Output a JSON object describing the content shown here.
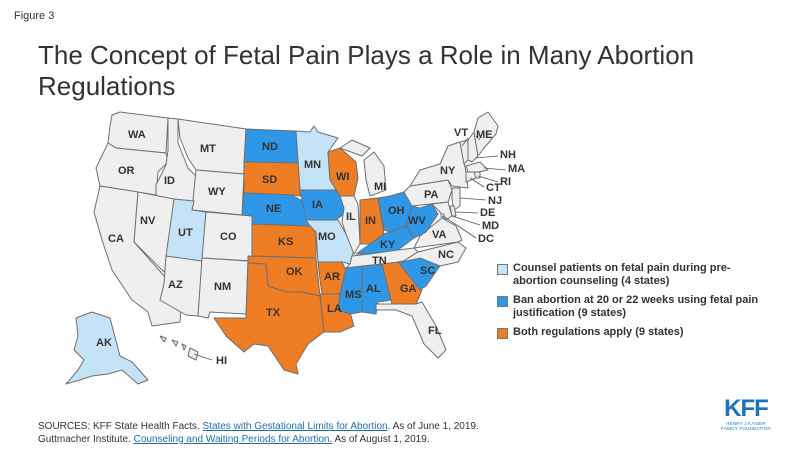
{
  "figure_label": "Figure 3",
  "title": "The Concept of Fetal Pain Plays a Role in Many Abortion Regulations",
  "colors": {
    "none": "#efefef",
    "counsel": "#c5e3f6",
    "ban": "#2f97e8",
    "both": "#ee7d24"
  },
  "legend": {
    "counsel": "Counsel patients on fetal pain during pre-abortion counseling (4 states)",
    "ban": "Ban abortion at 20 or 22 weeks using fetal pain justification (9 states)",
    "both": "Both regulations apply (9 states)"
  },
  "states": {
    "WA": "none",
    "OR": "none",
    "CA": "none",
    "ID": "none",
    "NV": "none",
    "MT": "none",
    "WY": "none",
    "UT": "counsel",
    "CO": "none",
    "AZ": "none",
    "NM": "none",
    "ND": "ban",
    "SD": "both",
    "NE": "ban",
    "KS": "both",
    "OK": "both",
    "TX": "both",
    "MN": "counsel",
    "IA": "ban",
    "MO": "counsel",
    "AR": "both",
    "LA": "both",
    "WI": "both",
    "IL": "none",
    "MI": "none",
    "IN": "both",
    "OH": "ban",
    "KY": "ban",
    "TN": "none",
    "MS": "ban",
    "AL": "ban",
    "GA": "both",
    "FL": "none",
    "SC": "ban",
    "NC": "none",
    "VA": "none",
    "WV": "ban",
    "PA": "none",
    "NY": "none",
    "VT": "none",
    "NH": "none",
    "ME": "none",
    "MA": "none",
    "RI": "none",
    "CT": "none",
    "NJ": "none",
    "DE": "none",
    "MD": "none",
    "DC": "none",
    "AK": "counsel",
    "HI": "none"
  },
  "labels": {
    "WA": "WA",
    "OR": "OR",
    "CA": "CA",
    "ID": "ID",
    "NV": "NV",
    "MT": "MT",
    "WY": "WY",
    "UT": "UT",
    "CO": "CO",
    "AZ": "AZ",
    "NM": "NM",
    "ND": "ND",
    "SD": "SD",
    "NE": "NE",
    "KS": "KS",
    "OK": "OK",
    "TX": "TX",
    "MN": "MN",
    "IA": "IA",
    "MO": "MO",
    "AR": "AR",
    "LA": "LA",
    "WI": "WI",
    "IL": "IL",
    "MI": "MI",
    "IN": "IN",
    "OH": "OH",
    "KY": "KY",
    "TN": "TN",
    "MS": "MS",
    "AL": "AL",
    "GA": "GA",
    "FL": "FL",
    "SC": "SC",
    "NC": "NC",
    "VA": "VA",
    "WV": "WV",
    "PA": "PA",
    "NY": "NY",
    "VT": "VT",
    "NH": "NH",
    "ME": "ME",
    "MA": "MA",
    "RI": "RI",
    "CT": "CT",
    "NJ": "NJ",
    "DE": "DE",
    "MD": "MD",
    "DC": "DC",
    "AK": "AK",
    "HI": "HI"
  },
  "sources": {
    "line1_prefix": "SOURCES: KFF State Health Facts. ",
    "line1_link": "States with Gestational Limits for Abortion",
    "line1_suffix": ". As of June 1, 2019.",
    "line2_prefix": "Guttmacher Institute. ",
    "line2_link": "Counseling and Waiting Periods for Abortion.",
    "line2_suffix": " As of August 1, 2019."
  },
  "logo": {
    "text": "KFF",
    "subline1": "HENRY J KAISER",
    "subline2": "FAMILY FOUNDATION"
  }
}
